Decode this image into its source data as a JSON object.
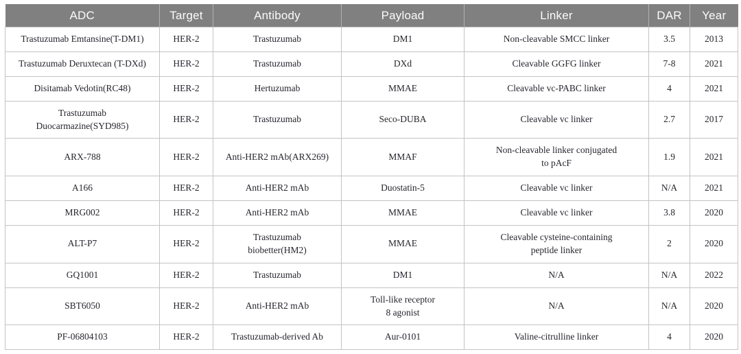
{
  "table": {
    "columns": [
      "ADC",
      "Target",
      "Antibody",
      "Payload",
      "Linker",
      "DAR",
      "Year"
    ],
    "rows": [
      {
        "adc": "Trastuzumab Emtansine(T-DM1)",
        "target": "HER-2",
        "antibody": "Trastuzumab",
        "payload": "DM1",
        "linker": "Non-cleavable SMCC linker",
        "dar": "3.5",
        "year": "2013"
      },
      {
        "adc": "Trastuzumab Deruxtecan (T-DXd)",
        "target": "HER-2",
        "antibody": "Trastuzumab",
        "payload": "DXd",
        "linker": "Cleavable GGFG linker",
        "dar": "7-8",
        "year": "2021"
      },
      {
        "adc": "Disitamab Vedotin(RC48)",
        "target": "HER-2",
        "antibody": "Hertuzumab",
        "payload": "MMAE",
        "linker": "Cleavable vc-PABC linker",
        "dar": "4",
        "year": "2021"
      },
      {
        "adc": "Trastuzumab\nDuocarmazine(SYD985)",
        "target": "HER-2",
        "antibody": "Trastuzumab",
        "payload": "Seco-DUBA",
        "linker": "Cleavable vc linker",
        "dar": "2.7",
        "year": "2017"
      },
      {
        "adc": "ARX-788",
        "target": "HER-2",
        "antibody": "Anti-HER2 mAb(ARX269)",
        "payload": "MMAF",
        "linker": "Non-cleavable linker conjugated\nto pAcF",
        "dar": "1.9",
        "year": "2021"
      },
      {
        "adc": "A166",
        "target": "HER-2",
        "antibody": "Anti-HER2 mAb",
        "payload": "Duostatin-5",
        "linker": "Cleavable vc linker",
        "dar": "N/A",
        "year": "2021"
      },
      {
        "adc": "MRG002",
        "target": "HER-2",
        "antibody": "Anti-HER2 mAb",
        "payload": "MMAE",
        "linker": "Cleavable vc linker",
        "dar": "3.8",
        "year": "2020"
      },
      {
        "adc": "ALT-P7",
        "target": "HER-2",
        "antibody": "Trastuzumab\nbiobetter(HM2)",
        "payload": "MMAE",
        "linker": "Cleavable cysteine-containing\npeptide linker",
        "dar": "2",
        "year": "2020"
      },
      {
        "adc": "GQ1001",
        "target": "HER-2",
        "antibody": "Trastuzumab",
        "payload": "DM1",
        "linker": "N/A",
        "dar": "N/A",
        "year": "2022"
      },
      {
        "adc": "SBT6050",
        "target": "HER-2",
        "antibody": "Anti-HER2 mAb",
        "payload": "Toll-like receptor\n8 agonist",
        "linker": "N/A",
        "dar": "N/A",
        "year": "2020"
      },
      {
        "adc": "PF-06804103",
        "target": "HER-2",
        "antibody": "Trastuzumab-derived Ab",
        "payload": "Aur-0101",
        "linker": "Valine-citrulline linker",
        "dar": "4",
        "year": "2020"
      }
    ]
  },
  "colors": {
    "header_bg": "#808080",
    "header_text": "#fbfbfb",
    "header_divider": "#b2b2b2",
    "grid_border": "#c3c3c3",
    "body_text": "#26262e",
    "page_bg": "#ffffff"
  }
}
